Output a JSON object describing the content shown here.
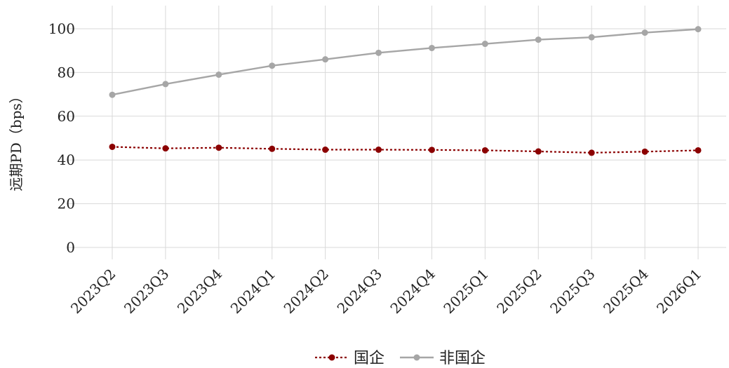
{
  "chart_data": {
    "type": "line",
    "title": "",
    "xlabel": "",
    "ylabel": "远期PD（bps）",
    "categories": [
      "2023Q2",
      "2023Q3",
      "2023Q4",
      "2024Q1",
      "2024Q2",
      "2024Q3",
      "2024Q4",
      "2025Q1",
      "2025Q2",
      "2025Q3",
      "2025Q4",
      "2026Q1"
    ],
    "ylim": [
      -5,
      110
    ],
    "yticks": [
      0,
      20,
      40,
      60,
      80,
      100
    ],
    "grid": true,
    "legend_position": "bottom",
    "series": [
      {
        "name": "国企",
        "color": "#8b0000",
        "line_style": "dotted",
        "marker": "circle",
        "values": [
          46.0,
          45.3,
          45.6,
          45.1,
          44.7,
          44.7,
          44.6,
          44.4,
          43.9,
          43.3,
          43.8,
          44.4
        ]
      },
      {
        "name": "非国企",
        "color": "#a6a6a6",
        "line_style": "solid",
        "marker": "circle",
        "values": [
          69.8,
          74.7,
          79.0,
          83.1,
          86.0,
          89.0,
          91.2,
          93.1,
          95.0,
          96.1,
          98.2,
          99.8
        ]
      }
    ]
  }
}
